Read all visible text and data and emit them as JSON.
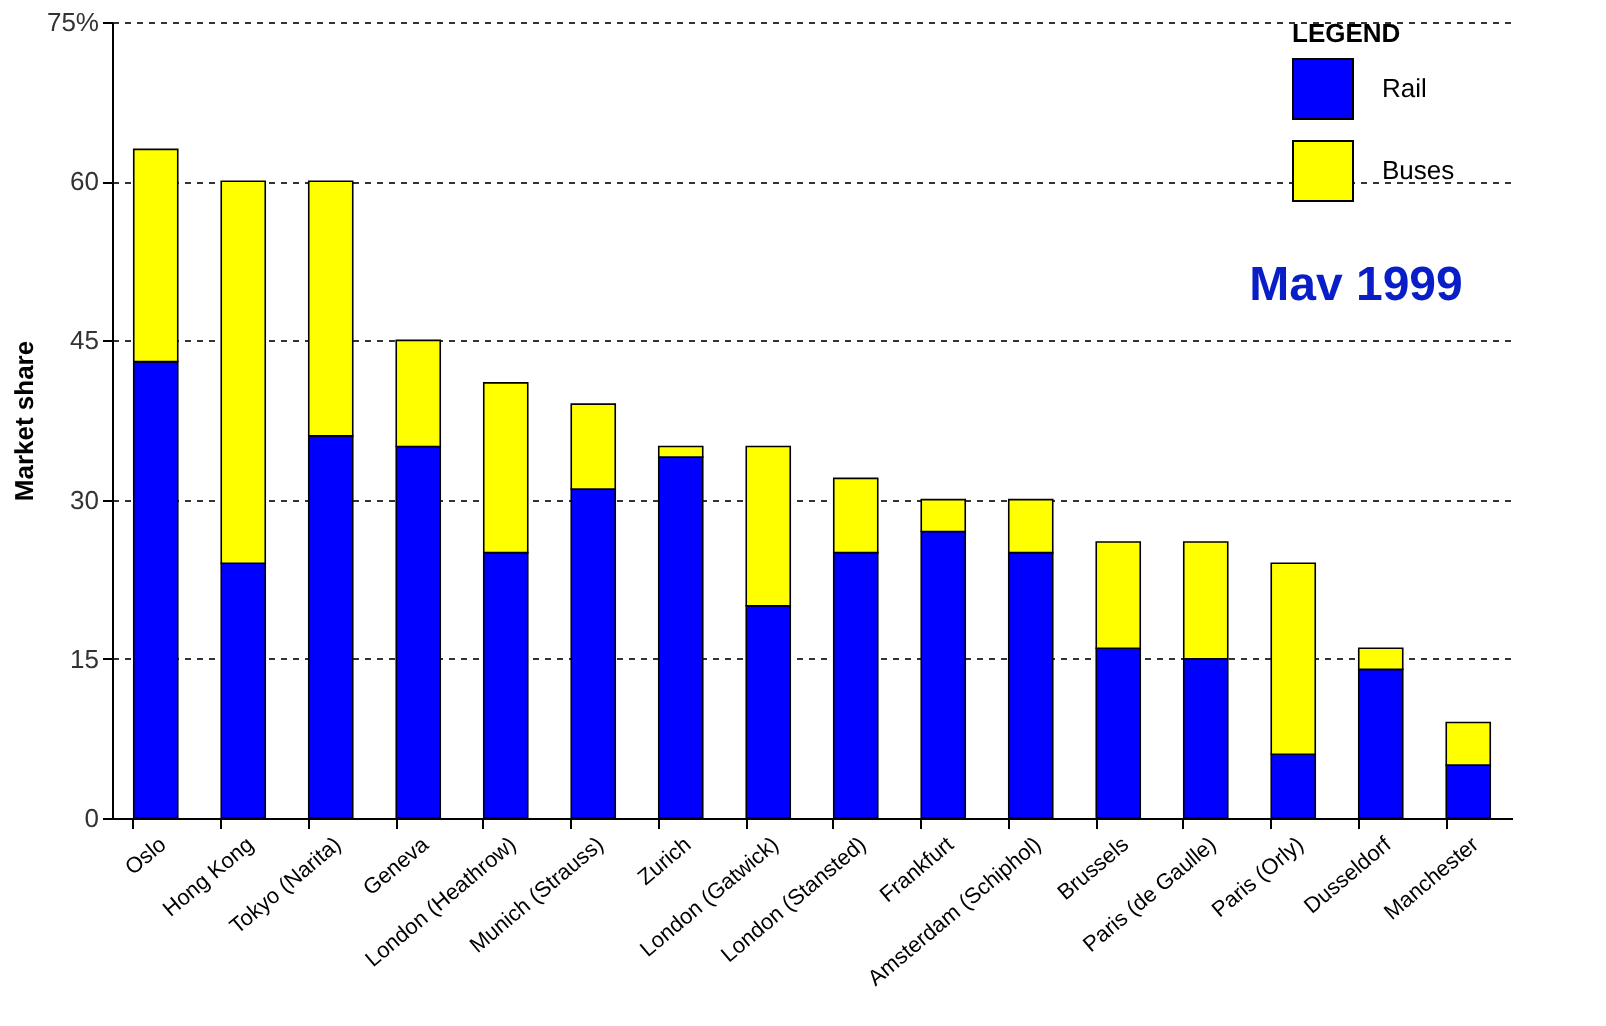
{
  "chart_data": {
    "type": "bar",
    "stacked": true,
    "ylabel": "Market share",
    "legend_title": "LEGEND",
    "legend": "top right",
    "grid": "y",
    "annotations": [
      "Mav 1999"
    ],
    "categories": [
      "Oslo",
      "Hong Kong",
      "Tokyo (Narita)",
      "Geneva",
      "London (Heathrow)",
      "Munich (Strauss)",
      "Zurich",
      "London (Gatwick)",
      "London (Stansted)",
      "Frankfurt",
      "Amsterdam (Schiphol)",
      "Brussels",
      "Paris (de Gaulle)",
      "Paris (Orly)",
      "Dusseldorf",
      "Manchester"
    ],
    "series": [
      {
        "name": "Rail",
        "color": "#0000ff",
        "values": [
          43,
          24,
          36,
          35,
          25,
          31,
          34,
          20,
          25,
          27,
          25,
          16,
          15,
          6,
          14,
          5
        ]
      },
      {
        "name": "Buses",
        "color": "#ffff00",
        "values": [
          20,
          36,
          24,
          10,
          16,
          8,
          1,
          15,
          7,
          3,
          5,
          10,
          11,
          18,
          2,
          4
        ]
      }
    ],
    "ylim": [
      0,
      75
    ],
    "yticks": [
      0,
      15,
      30,
      45,
      60,
      {
        "value": 75,
        "label": "75%"
      }
    ]
  }
}
